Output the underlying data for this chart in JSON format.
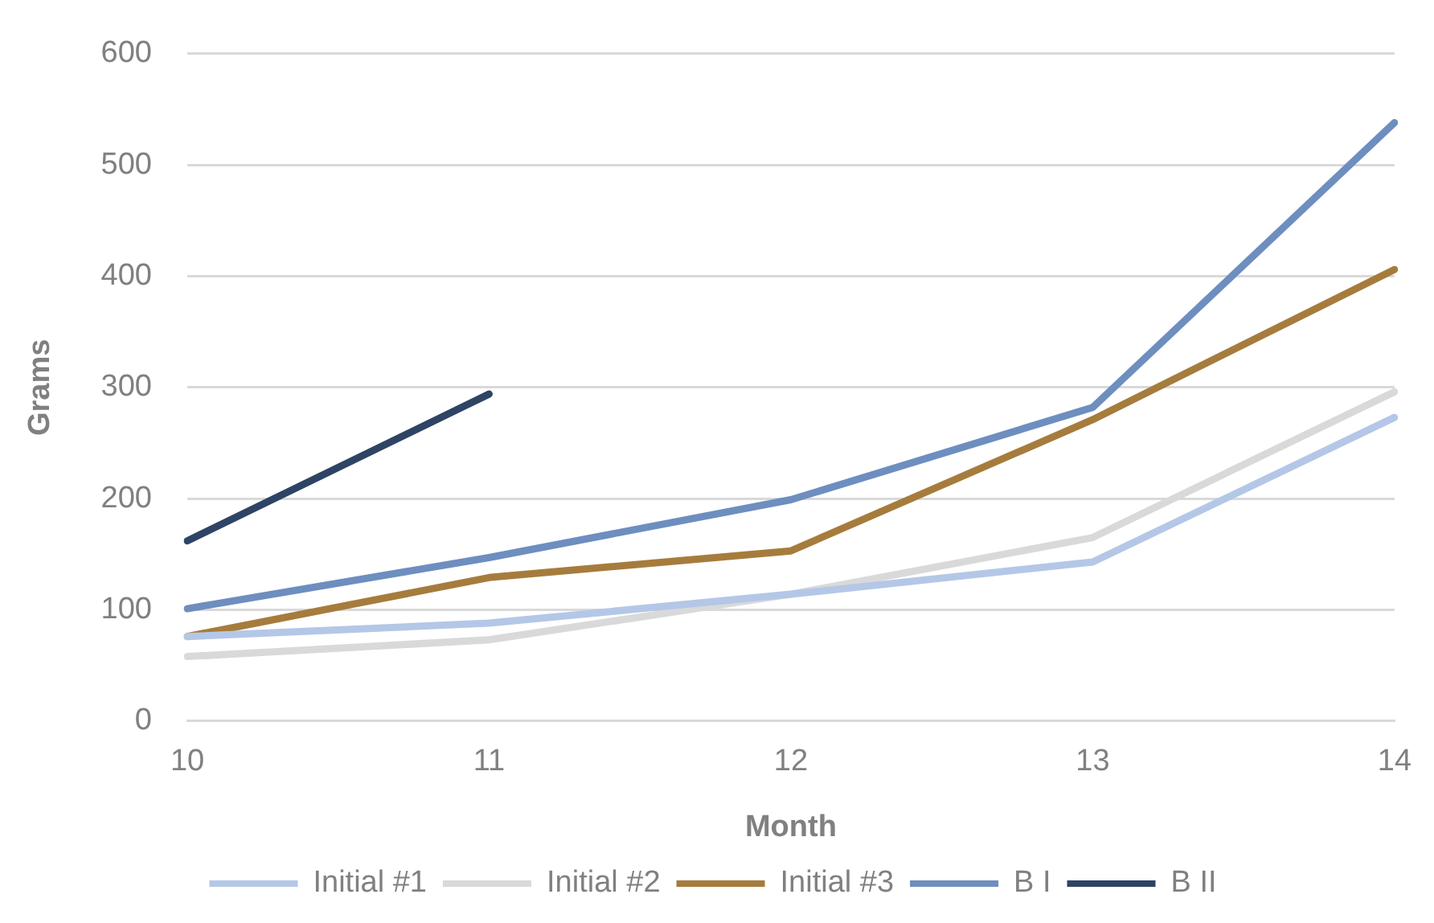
{
  "chart_data": {
    "type": "line",
    "xlabel": "Month",
    "ylabel": "Grams",
    "categories": [
      "10",
      "11",
      "12",
      "13",
      "14"
    ],
    "series": [
      {
        "name": "Initial #1",
        "color": "#b4c7e7",
        "values": [
          76,
          88,
          114,
          143,
          273
        ]
      },
      {
        "name": "Initial #2",
        "color": "#d9d9d9",
        "values": [
          58,
          73,
          114,
          165,
          296
        ]
      },
      {
        "name": "Initial #3",
        "color": "#a67c3d",
        "values": [
          76,
          129,
          153,
          271,
          406
        ]
      },
      {
        "name": "B I",
        "color": "#6d8ebf",
        "values": [
          101,
          147,
          199,
          282,
          538
        ]
      },
      {
        "name": "B II",
        "color": "#2e4465",
        "values": [
          162,
          294,
          null,
          null,
          null
        ]
      }
    ],
    "ylim": [
      0,
      600
    ],
    "yticks": [
      0,
      100,
      200,
      300,
      400,
      500,
      600
    ],
    "grid": "y",
    "legend": "bottom",
    "marker": "none",
    "line_style": "solid"
  }
}
